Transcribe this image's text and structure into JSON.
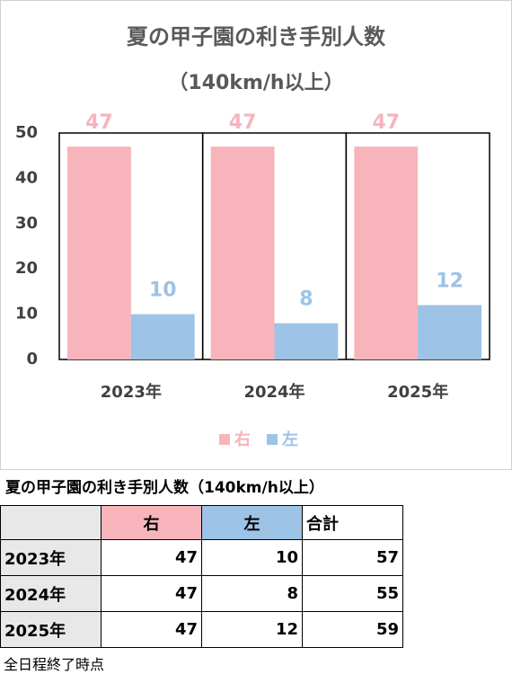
{
  "chart_data": {
    "type": "bar",
    "title": "夏の甲子園の利き手別人数",
    "subtitle": "（140km/h以上）",
    "categories": [
      "2023年",
      "2024年",
      "2025年"
    ],
    "series": [
      {
        "name": "右",
        "color": "#f8b4bb",
        "values": [
          47,
          47,
          47
        ]
      },
      {
        "name": "左",
        "color": "#9dc3e6",
        "values": [
          10,
          8,
          12
        ]
      }
    ],
    "ylim": [
      0,
      50
    ],
    "yticks": [
      0,
      10,
      20,
      30,
      40,
      50
    ],
    "legend": "bottom"
  },
  "table": {
    "title": "夏の甲子園の利き手別人数（140km/h以上）",
    "header": [
      "右",
      "左",
      "合計"
    ],
    "rows": [
      [
        "2023年",
        "47",
        "10",
        "57"
      ],
      [
        "2024年",
        "47",
        "8",
        "55"
      ],
      [
        "2025年",
        "47",
        "12",
        "59"
      ]
    ],
    "note": "全日程終了時点"
  }
}
